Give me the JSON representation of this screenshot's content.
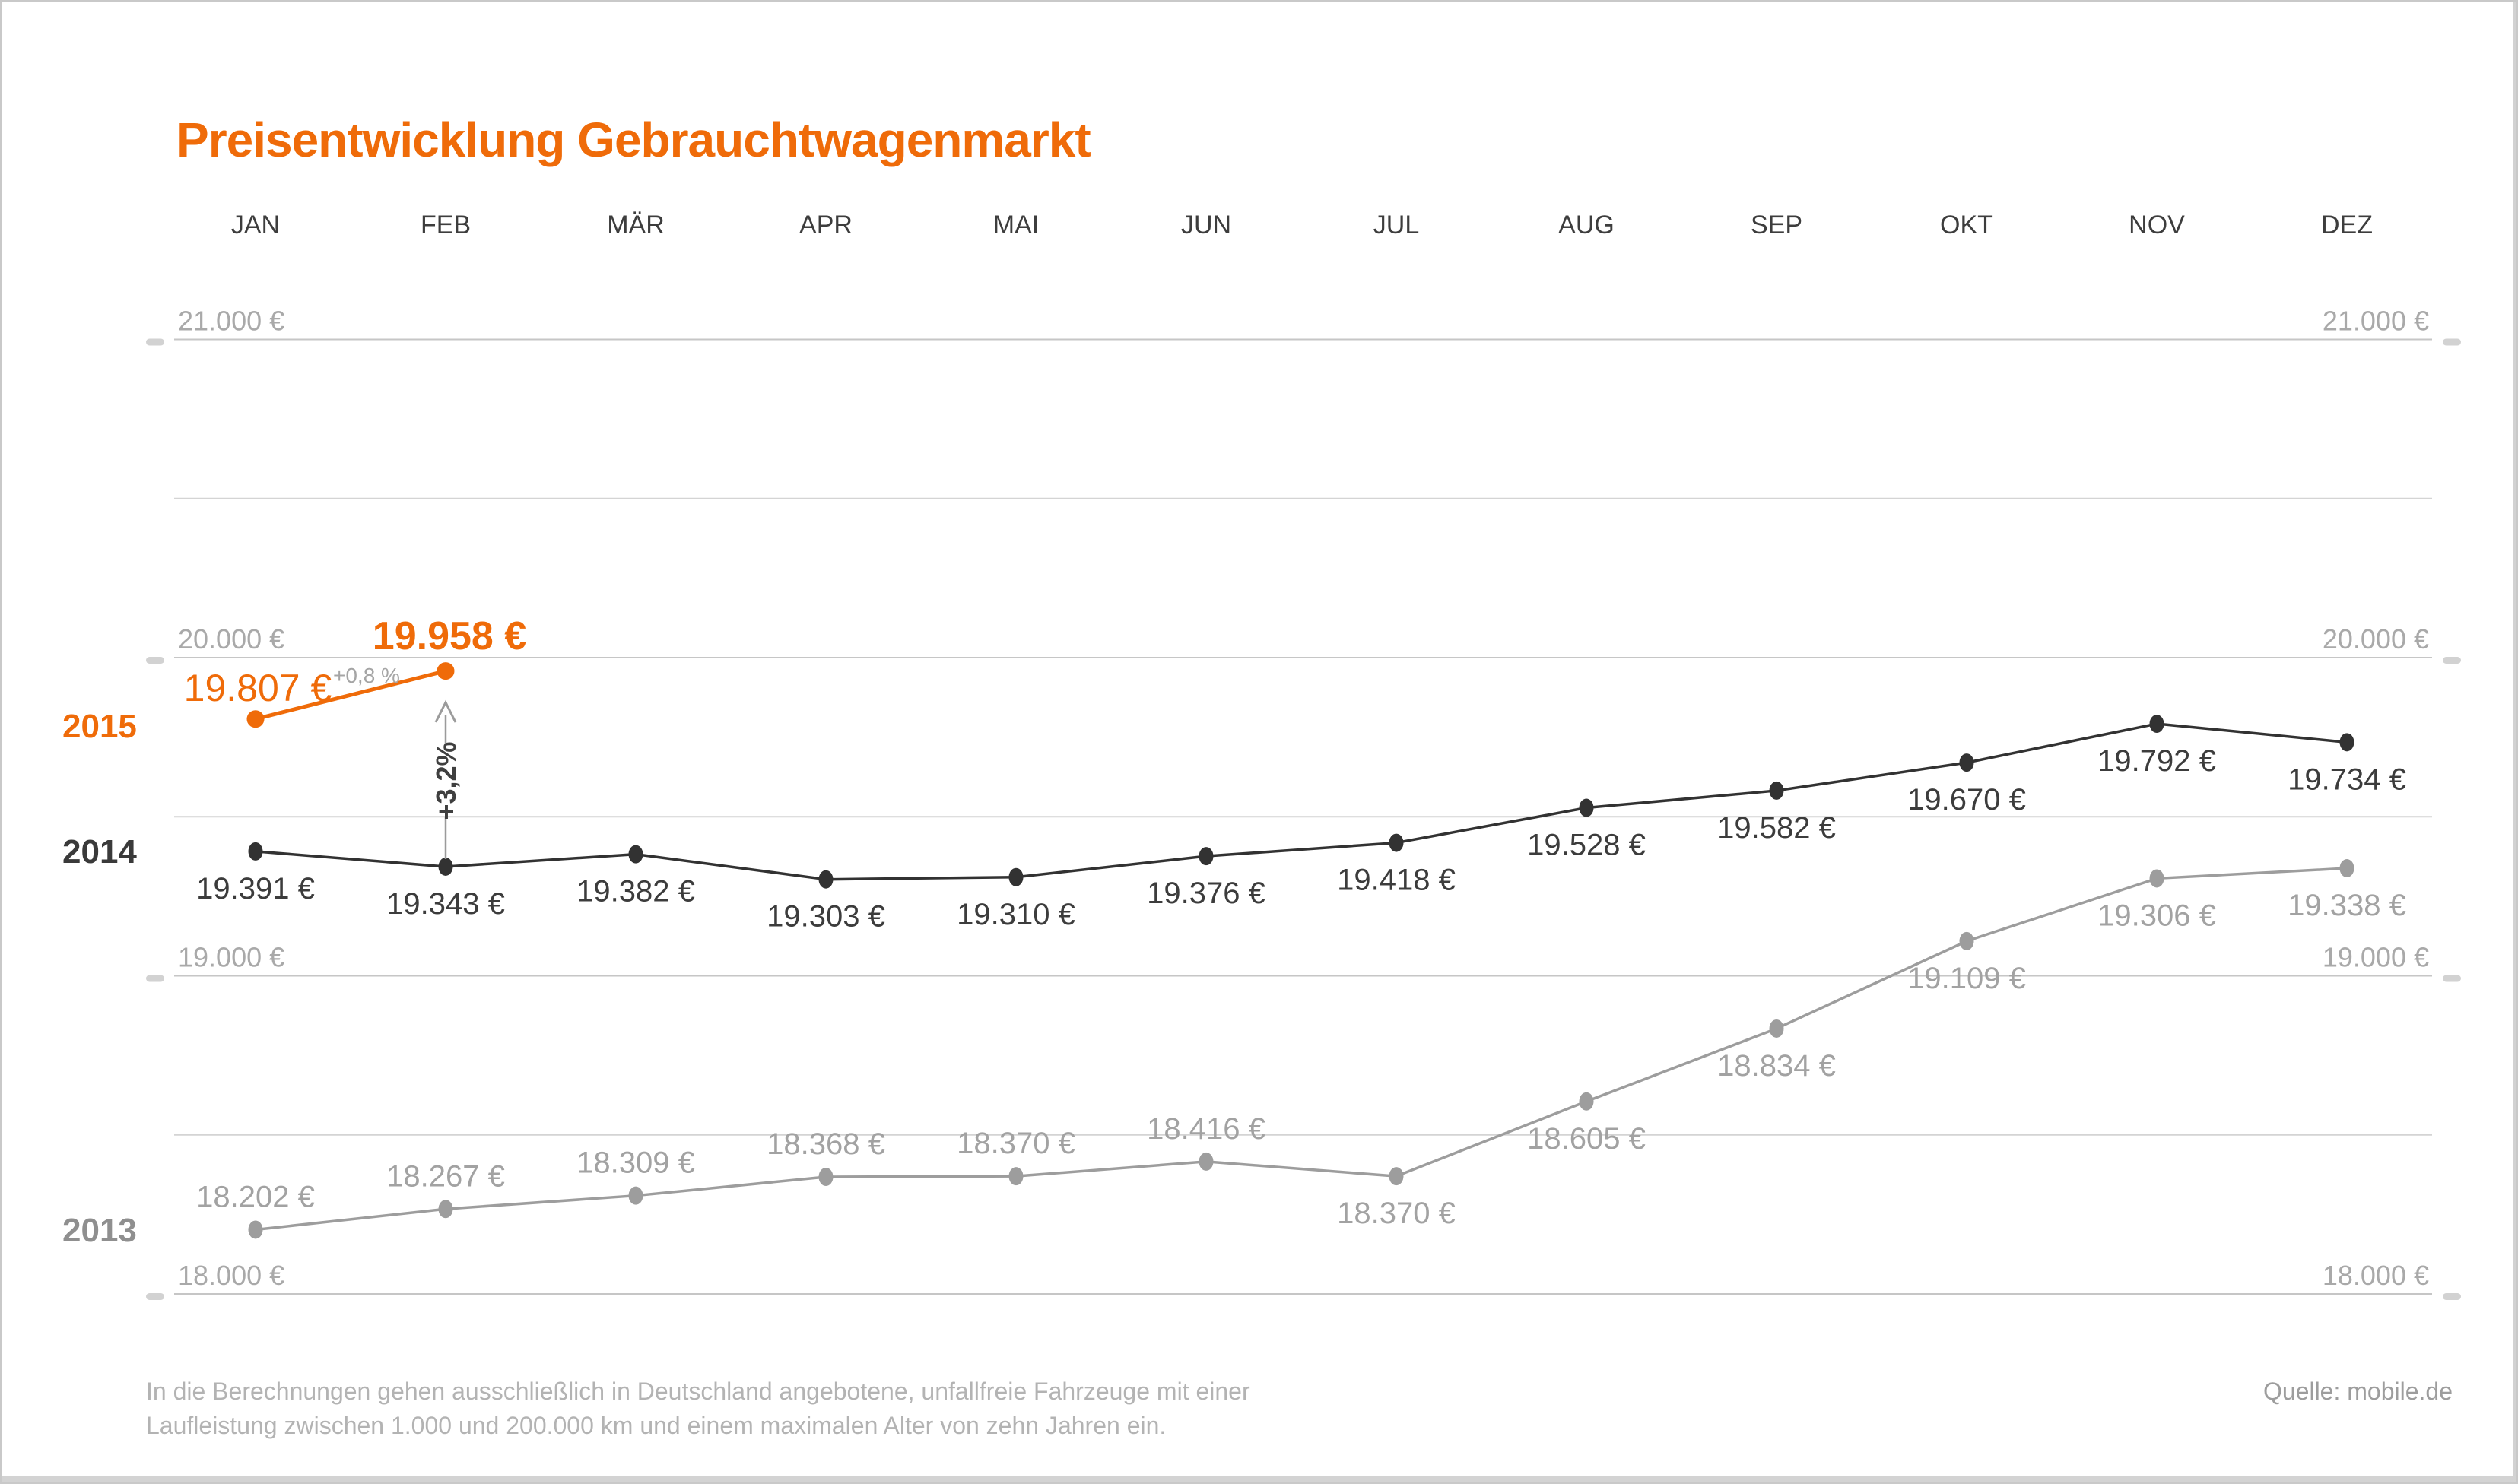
{
  "title": "Preisentwicklung Gebrauchtwagenmarkt",
  "footer": {
    "line1": "In die Berechnungen gehen ausschließlich in Deutschland angebotene, unfallfreie Fahrzeuge mit einer",
    "line2": "Laufleistung zwischen 1.000 und 200.000 km und einem maximalen Alter von zehn Jahren ein.",
    "source": "Quelle: mobile.de"
  },
  "colors": {
    "accent_orange": "#ef6b09",
    "series_2014": "#323232",
    "series_2013": "#9d9d9d",
    "axis_label": "#a9a9a9",
    "major_gridline": "#c6c6c6",
    "minor_gridline": "#d4d4d4",
    "tick_pill": "#d2d2d2",
    "label_2014": "#3c3c3c",
    "label_2013": "#a2a2a2",
    "annotation_gray": "#9b9b9b",
    "annotation_text": "#3f3f3f",
    "footer_text": "#b3b3b3"
  },
  "chart_data": {
    "type": "line",
    "title": "Preisentwicklung Gebrauchtwagenmarkt",
    "categories": [
      "JAN",
      "FEB",
      "MÄR",
      "APR",
      "MAI",
      "JUN",
      "JUL",
      "AUG",
      "SEP",
      "OKT",
      "NOV",
      "DEZ"
    ],
    "xlabel": "",
    "ylabel": "€",
    "ylim": [
      17800,
      21300
    ],
    "grid": "horizontal",
    "legend_position": "left-of-series-start",
    "y_axis": {
      "ticks": [
        {
          "value": 21000,
          "label": "21.000 €"
        },
        {
          "value": 20000,
          "label": "20.000 €"
        },
        {
          "value": 19000,
          "label": "19.000 €"
        },
        {
          "value": 18000,
          "label": "18.000 €"
        }
      ],
      "minor_gridline_values": [
        20500,
        19500,
        18500
      ],
      "labels_on_both_sides": true
    },
    "series": [
      {
        "name": "2013",
        "color": "#9d9d9d",
        "values": [
          18202,
          18267,
          18309,
          18368,
          18370,
          18416,
          18370,
          18605,
          18834,
          19109,
          19306,
          19338
        ],
        "point_labels": [
          "18.202 €",
          "18.267 €",
          "18.309 €",
          "18.368 €",
          "18.370 €",
          "18.416 €",
          "18.370 €",
          "18.605 €",
          "18.834 €",
          "19.109 €",
          "19.306 €",
          "19.338 €"
        ]
      },
      {
        "name": "2014",
        "color": "#323232",
        "values": [
          19391,
          19343,
          19382,
          19303,
          19310,
          19376,
          19418,
          19528,
          19582,
          19670,
          19792,
          19734
        ],
        "point_labels": [
          "19.391 €",
          "19.343 €",
          "19.382 €",
          "19.303 €",
          "19.310 €",
          "19.376 €",
          "19.418 €",
          "19.528 €",
          "19.582 €",
          "19.670 €",
          "19.792 €",
          "19.734 €"
        ]
      },
      {
        "name": "2015",
        "color": "#ef6b09",
        "values": [
          19807,
          19958
        ],
        "point_labels": [
          "19.807 €",
          "19.958 €"
        ]
      }
    ],
    "annotations": {
      "change_2015_jan_feb": "+0,8 %",
      "change_feb_2014_to_2015": "+3,2%"
    }
  }
}
